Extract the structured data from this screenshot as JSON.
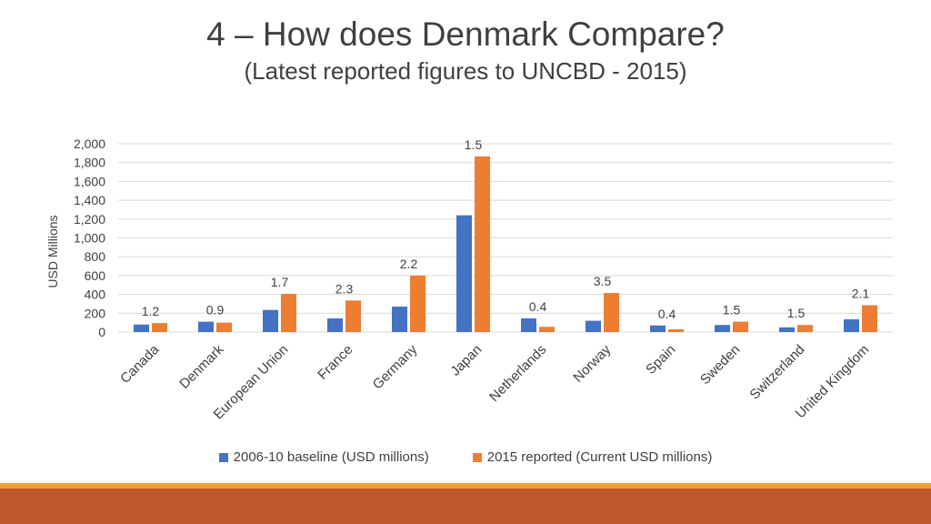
{
  "header": {
    "title": "4 – How does Denmark Compare?",
    "subtitle": "(Latest reported figures to UNCBD - 2015)"
  },
  "colors": {
    "series1": "#4472c4",
    "series2": "#ed7d31",
    "grid": "#d9d9d9",
    "text": "#404040"
  },
  "chart_data": {
    "type": "bar",
    "title": "",
    "xlabel": "",
    "ylabel": "USD Millions",
    "ylim": [
      0,
      2000
    ],
    "yticks": [
      0,
      200,
      400,
      600,
      800,
      1000,
      1200,
      1400,
      1600,
      1800,
      2000
    ],
    "ytick_labels": [
      "0",
      "200",
      "400",
      "600",
      "800",
      "1,000",
      "1,200",
      "1,400",
      "1,600",
      "1,800",
      "2,000"
    ],
    "categories": [
      "Canada",
      "Denmark",
      "European Union",
      "France",
      "Germany",
      "Japan",
      "Netherlands",
      "Norway",
      "Spain",
      "Sweden",
      "Switzerland",
      "United Kingdom"
    ],
    "series": [
      {
        "name": "2006-10 baseline (USD millions)",
        "values": [
          80,
          110,
          235,
          145,
          270,
          1240,
          145,
          120,
          70,
          75,
          50,
          135
        ]
      },
      {
        "name": "2015 reported (Current USD millions)",
        "values": [
          95,
          100,
          405,
          335,
          600,
          1865,
          55,
          415,
          30,
          110,
          75,
          285
        ]
      }
    ],
    "annotations": [
      "1.2",
      "0.9",
      "1.7",
      "2.3",
      "2.2",
      "1.5",
      "0.4",
      "3.5",
      "0.4",
      "1.5",
      "1.5",
      "2.1"
    ],
    "grid": true,
    "legend": "bottom"
  }
}
